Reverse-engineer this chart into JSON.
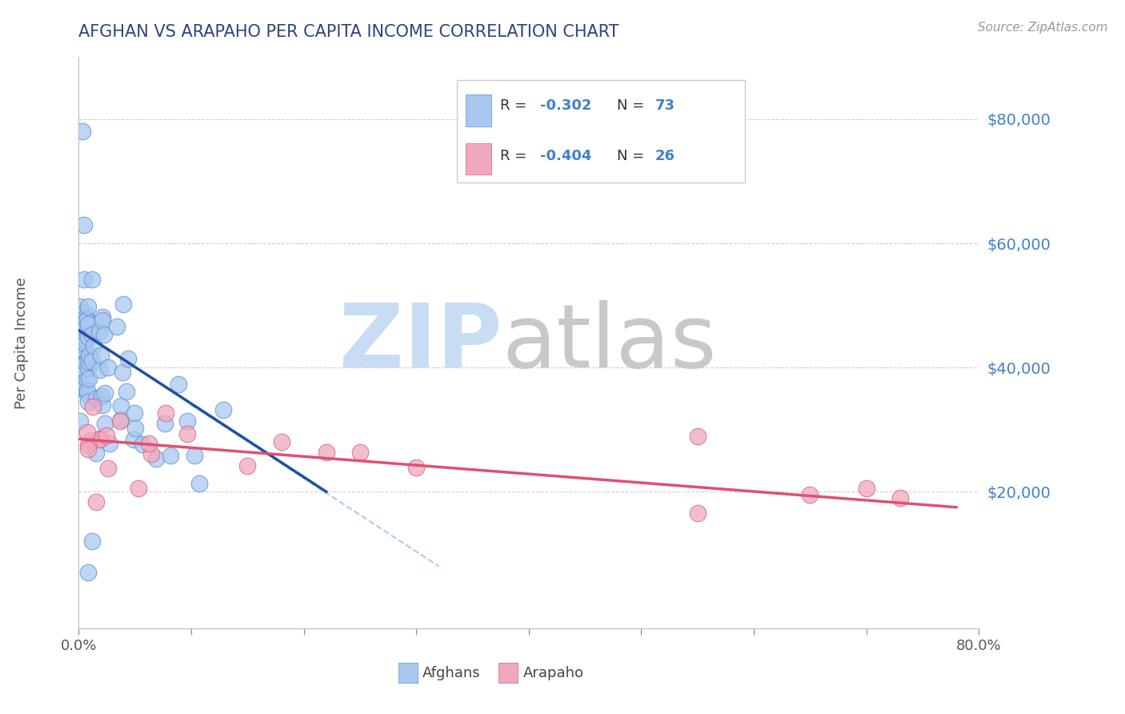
{
  "title": "AFGHAN VS ARAPAHO PER CAPITA INCOME CORRELATION CHART",
  "source_text": "Source: ZipAtlas.com",
  "ylabel": "Per Capita Income",
  "xlim": [
    0.0,
    80.0
  ],
  "ylim": [
    -2000,
    90000
  ],
  "yticks": [
    20000,
    40000,
    60000,
    80000
  ],
  "ytick_labels": [
    "$20,000",
    "$40,000",
    "$60,000",
    "$80,000"
  ],
  "xticks": [
    0.0,
    10.0,
    20.0,
    30.0,
    40.0,
    50.0,
    60.0,
    70.0,
    80.0
  ],
  "xtick_labels": [
    "0.0%",
    "",
    "",
    "",
    "",
    "",
    "",
    "",
    "80.0%"
  ],
  "legend_r1_label": "R = -0.302",
  "legend_n1_label": "N = 73",
  "legend_r2_label": "R = -0.404",
  "legend_n2_label": "N = 26",
  "title_color": "#2E4482",
  "afghan_color": "#A8C8F0",
  "arapaho_color": "#F0A8BC",
  "afghan_edge_color": "#6090D0",
  "arapaho_edge_color": "#D06080",
  "afghan_line_color": "#2050A0",
  "arapaho_line_color": "#E05070",
  "dashed_line_color": "#AACCEE",
  "legend_blue_color": "#4080D0",
  "watermark_zip_color": "#C8DCF4",
  "watermark_atlas_color": "#C8C8C8",
  "background_color": "#FFFFFF",
  "grid_color": "#CCCCCC",
  "bottom_legend_afghans": "Afghans",
  "bottom_legend_arapaho": "Arapaho",
  "afghan_line_x0": 0.0,
  "afghan_line_y0": 46000,
  "afghan_line_x1": 22.0,
  "afghan_line_y1": 20000,
  "dashed_line_x0": 10.0,
  "dashed_line_y0": 34000,
  "dashed_line_x1": 32.0,
  "dashed_line_y1": 8000,
  "arapaho_line_x0": 0.0,
  "arapaho_line_y0": 28500,
  "arapaho_line_x1": 78.0,
  "arapaho_line_y1": 17500
}
